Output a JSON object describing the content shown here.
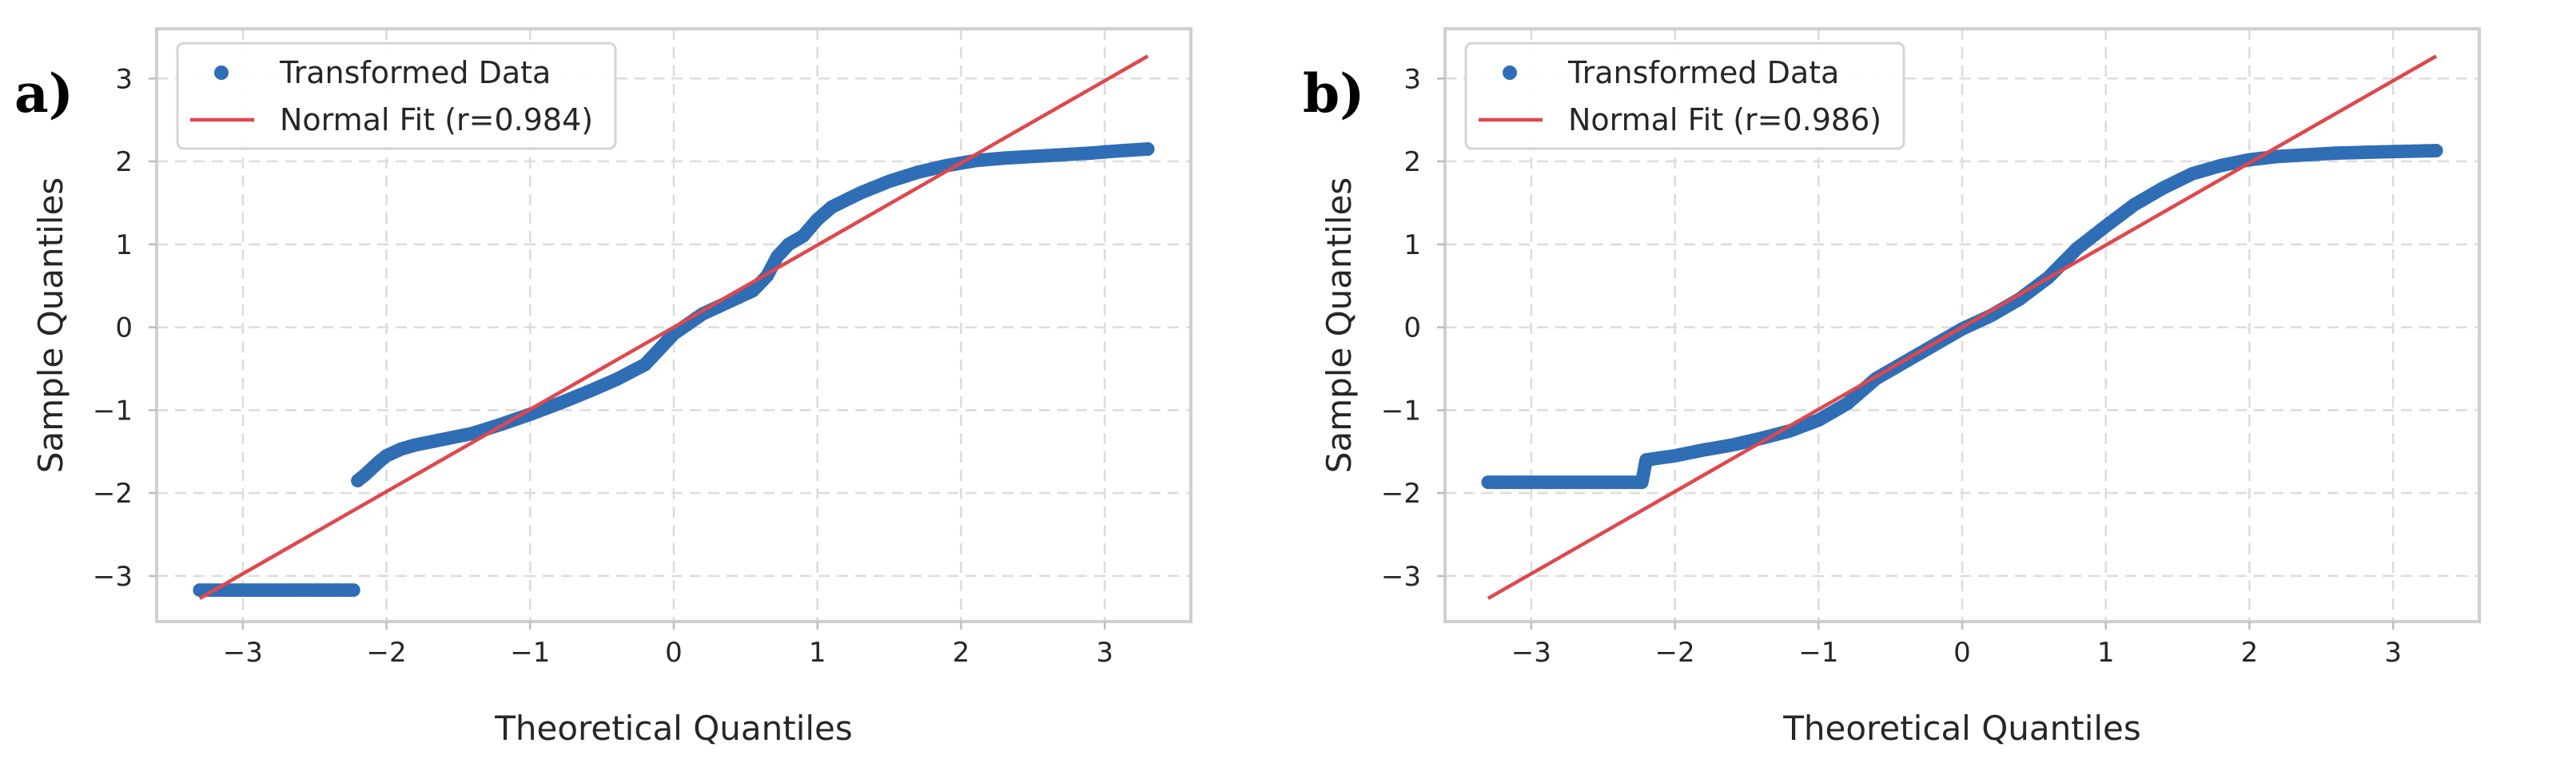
{
  "chart_data": [
    {
      "type": "scatter",
      "panel_label": "a)",
      "xlabel": "Theoretical Quantiles",
      "ylabel": "Sample Quantiles",
      "xlim": [
        -3.6,
        3.6
      ],
      "ylim": [
        -3.55,
        3.6
      ],
      "x_ticks": [
        -3,
        -2,
        -1,
        0,
        1,
        2,
        3
      ],
      "x_tick_labels": [
        "−3",
        "−2",
        "−1",
        "0",
        "1",
        "2",
        "3"
      ],
      "y_ticks": [
        -3,
        -2,
        -1,
        0,
        1,
        2,
        3
      ],
      "y_tick_labels": [
        "−3",
        "−2",
        "−1",
        "0",
        "1",
        "2",
        "3"
      ],
      "grid": true,
      "legend_position": "top-left",
      "colors": {
        "points": "#2f6db5",
        "fit": "#e0474c"
      },
      "series": [
        {
          "name": "Transformed Data",
          "kind": "points",
          "points": [
            [
              -3.3,
              -3.17
            ],
            [
              -3.04,
              -3.17
            ],
            [
              -2.9,
              -3.17
            ],
            [
              -2.8,
              -3.17
            ],
            [
              -2.7,
              -3.17
            ],
            [
              -2.62,
              -3.17
            ],
            [
              -2.55,
              -3.17
            ],
            [
              -2.48,
              -3.17
            ],
            [
              -2.42,
              -3.17
            ],
            [
              -2.36,
              -3.17
            ],
            [
              -2.31,
              -3.17
            ],
            [
              -2.27,
              -3.17
            ],
            [
              -2.23,
              -3.17
            ],
            [
              -2.2,
              -1.85
            ],
            [
              -2.15,
              -1.78
            ],
            [
              -2.1,
              -1.7
            ],
            [
              -2.05,
              -1.62
            ],
            [
              -2.0,
              -1.55
            ],
            [
              -1.9,
              -1.47
            ],
            [
              -1.8,
              -1.42
            ],
            [
              -1.6,
              -1.35
            ],
            [
              -1.4,
              -1.28
            ],
            [
              -1.2,
              -1.17
            ],
            [
              -1.0,
              -1.05
            ],
            [
              -0.8,
              -0.92
            ],
            [
              -0.6,
              -0.78
            ],
            [
              -0.4,
              -0.63
            ],
            [
              -0.2,
              -0.45
            ],
            [
              0.0,
              -0.08
            ],
            [
              0.2,
              0.16
            ],
            [
              0.4,
              0.32
            ],
            [
              0.55,
              0.44
            ],
            [
              0.65,
              0.62
            ],
            [
              0.72,
              0.85
            ],
            [
              0.8,
              1.0
            ],
            [
              0.9,
              1.1
            ],
            [
              1.0,
              1.3
            ],
            [
              1.1,
              1.45
            ],
            [
              1.3,
              1.62
            ],
            [
              1.5,
              1.76
            ],
            [
              1.7,
              1.87
            ],
            [
              1.9,
              1.95
            ],
            [
              2.1,
              2.01
            ],
            [
              2.3,
              2.04
            ],
            [
              2.5,
              2.06
            ],
            [
              2.7,
              2.08
            ],
            [
              2.9,
              2.1
            ],
            [
              3.04,
              2.12
            ],
            [
              3.3,
              2.15
            ]
          ]
        },
        {
          "name": "Normal Fit (r=0.984)",
          "kind": "line",
          "points": [
            [
              -3.3,
              -3.27
            ],
            [
              3.3,
              3.27
            ]
          ]
        }
      ]
    },
    {
      "type": "scatter",
      "panel_label": "b)",
      "xlabel": "Theoretical Quantiles",
      "ylabel": "Sample Quantiles",
      "xlim": [
        -3.6,
        3.6
      ],
      "ylim": [
        -3.55,
        3.6
      ],
      "x_ticks": [
        -3,
        -2,
        -1,
        0,
        1,
        2,
        3
      ],
      "x_tick_labels": [
        "−3",
        "−2",
        "−1",
        "0",
        "1",
        "2",
        "3"
      ],
      "y_ticks": [
        -3,
        -2,
        -1,
        0,
        1,
        2,
        3
      ],
      "y_tick_labels": [
        "−3",
        "−2",
        "−1",
        "0",
        "1",
        "2",
        "3"
      ],
      "grid": true,
      "legend_position": "top-left",
      "colors": {
        "points": "#2f6db5",
        "fit": "#e0474c"
      },
      "series": [
        {
          "name": "Transformed Data",
          "kind": "points",
          "points": [
            [
              -3.3,
              -1.87
            ],
            [
              -3.04,
              -1.87
            ],
            [
              -2.9,
              -1.87
            ],
            [
              -2.8,
              -1.87
            ],
            [
              -2.7,
              -1.87
            ],
            [
              -2.62,
              -1.87
            ],
            [
              -2.55,
              -1.87
            ],
            [
              -2.48,
              -1.87
            ],
            [
              -2.42,
              -1.87
            ],
            [
              -2.36,
              -1.87
            ],
            [
              -2.31,
              -1.87
            ],
            [
              -2.27,
              -1.87
            ],
            [
              -2.23,
              -1.87
            ],
            [
              -2.2,
              -1.6
            ],
            [
              -2.0,
              -1.55
            ],
            [
              -1.8,
              -1.48
            ],
            [
              -1.6,
              -1.42
            ],
            [
              -1.4,
              -1.34
            ],
            [
              -1.2,
              -1.25
            ],
            [
              -1.0,
              -1.12
            ],
            [
              -0.8,
              -0.92
            ],
            [
              -0.6,
              -0.62
            ],
            [
              -0.4,
              -0.42
            ],
            [
              -0.2,
              -0.22
            ],
            [
              0.0,
              -0.02
            ],
            [
              0.2,
              0.14
            ],
            [
              0.4,
              0.34
            ],
            [
              0.6,
              0.6
            ],
            [
              0.8,
              0.95
            ],
            [
              1.0,
              1.22
            ],
            [
              1.2,
              1.48
            ],
            [
              1.4,
              1.68
            ],
            [
              1.6,
              1.85
            ],
            [
              1.8,
              1.95
            ],
            [
              2.0,
              2.02
            ],
            [
              2.2,
              2.06
            ],
            [
              2.4,
              2.08
            ],
            [
              2.6,
              2.1
            ],
            [
              2.8,
              2.11
            ],
            [
              3.04,
              2.12
            ],
            [
              3.3,
              2.13
            ]
          ]
        },
        {
          "name": "Normal Fit (r=0.986)",
          "kind": "line",
          "points": [
            [
              -3.3,
              -3.27
            ],
            [
              3.3,
              3.27
            ]
          ]
        }
      ]
    }
  ]
}
